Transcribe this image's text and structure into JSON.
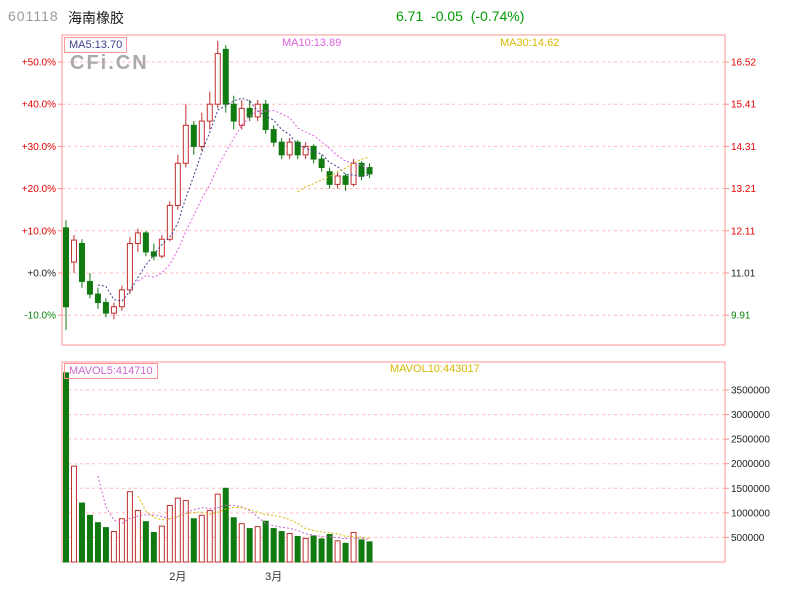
{
  "header": {
    "code": "601118",
    "name": "海南橡胶",
    "quote": "6.71  -0.05  (-0.74%)"
  },
  "watermark": "CFi.CN",
  "main_chart": {
    "ma_labels": [
      {
        "text": "MA5:13.70",
        "color": "#404090"
      },
      {
        "text": "MA10:13.89",
        "color": "#e060e0"
      },
      {
        "text": "MA30:14.62",
        "color": "#d8b800"
      }
    ]
  },
  "volume_chart": {
    "mavol_labels": [
      {
        "text": "MAVOL5:414710",
        "color": "#cc66cc"
      },
      {
        "text": "MAVOL10:443017",
        "color": "#d8b800"
      }
    ]
  },
  "chart_data": {
    "type": "candlestick",
    "title": "601118 海南橡胶",
    "subtitle": "Daily K-line (% change vs base) with volume pane",
    "base_price": 11.01,
    "pct_range": [
      -17.1,
      56.4
    ],
    "volume_range": [
      0,
      4070000
    ],
    "grid": "dashed-horizontal",
    "legend_position": "top-inside",
    "colors": {
      "up": "#c22f2f",
      "down": "#117a11",
      "grid": "#ffbcbc",
      "grid_strong": "#ff8c8c",
      "border": "#ff9494",
      "ma5": "#404090",
      "ma10": "#e060e0",
      "ma30": "#d8b800",
      "mavol5": "#cc66cc",
      "mavol10": "#d8b800",
      "month_label": "#333333"
    },
    "left_axis_ticks": [
      {
        "label": "+50.0%",
        "pct": 50,
        "color": "#e60000"
      },
      {
        "label": "+40.0%",
        "pct": 40,
        "color": "#e60000"
      },
      {
        "label": "+30.0%",
        "pct": 30,
        "color": "#e60000"
      },
      {
        "label": "+20.0%",
        "pct": 20,
        "color": "#e60000"
      },
      {
        "label": "+10.0%",
        "pct": 10,
        "color": "#e60000"
      },
      {
        "label": "+0.0%",
        "pct": 0,
        "color": "#222222"
      },
      {
        "label": "-10.0%",
        "pct": -10,
        "color": "#0a8a0a"
      }
    ],
    "right_axis_ticks": [
      {
        "label": "16.52",
        "pct": 50,
        "color": "#e60000"
      },
      {
        "label": "15.41",
        "pct": 40,
        "color": "#e60000"
      },
      {
        "label": "14.31",
        "pct": 30,
        "color": "#e60000"
      },
      {
        "label": "13.21",
        "pct": 20,
        "color": "#e60000"
      },
      {
        "label": "12.11",
        "pct": 10,
        "color": "#e60000"
      },
      {
        "label": "11.01",
        "pct": 0,
        "color": "#222222"
      },
      {
        "label": "9.91",
        "pct": -10,
        "color": "#0a8a0a"
      }
    ],
    "volume_axis_ticks": [
      {
        "label": "3500000",
        "value": 3500000,
        "color": "#222222"
      },
      {
        "label": "3000000",
        "value": 3000000,
        "color": "#222222"
      },
      {
        "label": "2500000",
        "value": 2500000,
        "color": "#222222"
      },
      {
        "label": "2000000",
        "value": 2000000,
        "color": "#222222"
      },
      {
        "label": "1500000",
        "value": 1500000,
        "color": "#222222"
      },
      {
        "label": "1000000",
        "value": 1000000,
        "color": "#222222"
      },
      {
        "label": "500000",
        "value": 500000,
        "color": "#222222"
      }
    ],
    "x_month_labels": [
      {
        "slot": 14,
        "label": "2月"
      },
      {
        "slot": 26,
        "label": "3月"
      }
    ],
    "total_slots": 83,
    "ma_periods": [
      5,
      10,
      30
    ],
    "mavol_periods": [
      5,
      10
    ],
    "columns": [
      "open_pct",
      "high_pct",
      "low_pct",
      "close_pct",
      "volume"
    ],
    "candles": [
      [
        10.7,
        12.5,
        -13.5,
        -8.0,
        3850000
      ],
      [
        2.6,
        9.0,
        0.0,
        7.8,
        1950000
      ],
      [
        7.0,
        8.0,
        -3.5,
        -2.0,
        1200000
      ],
      [
        -2.0,
        0.0,
        -6.0,
        -5.0,
        950000
      ],
      [
        -5.0,
        -3.5,
        -8.5,
        -7.0,
        800000
      ],
      [
        -7.0,
        -6.0,
        -10.5,
        -9.5,
        700000
      ],
      [
        -9.5,
        -7.0,
        -11.0,
        -8.0,
        620000
      ],
      [
        -8.0,
        -3.0,
        -9.0,
        -4.0,
        880000
      ],
      [
        -4.0,
        8.5,
        -5.0,
        7.0,
        1430000
      ],
      [
        7.0,
        10.5,
        5.0,
        9.5,
        1050000
      ],
      [
        9.5,
        10.0,
        4.0,
        5.0,
        820000
      ],
      [
        5.0,
        7.0,
        3.0,
        4.0,
        600000
      ],
      [
        4.0,
        9.0,
        3.5,
        8.0,
        730000
      ],
      [
        8.0,
        17.0,
        7.5,
        16.0,
        1150000
      ],
      [
        16.0,
        28.0,
        15.0,
        26.0,
        1300000
      ],
      [
        26.0,
        40.0,
        25.0,
        35.0,
        1250000
      ],
      [
        35.0,
        36.0,
        28.0,
        30.0,
        880000
      ],
      [
        30.0,
        38.0,
        29.0,
        36.0,
        950000
      ],
      [
        36.0,
        43.0,
        34.0,
        40.0,
        1050000
      ],
      [
        40.0,
        55.0,
        39.0,
        52.0,
        1380000
      ],
      [
        53.0,
        54.0,
        38.0,
        40.0,
        1500000
      ],
      [
        40.0,
        42.0,
        34.0,
        36.0,
        900000
      ],
      [
        35.0,
        41.0,
        34.0,
        39.0,
        780000
      ],
      [
        39.0,
        41.0,
        36.0,
        37.0,
        680000
      ],
      [
        37.0,
        41.0,
        36.0,
        40.0,
        720000
      ],
      [
        40.0,
        41.0,
        33.0,
        34.0,
        830000
      ],
      [
        34.0,
        35.0,
        30.0,
        31.0,
        680000
      ],
      [
        31.0,
        32.0,
        27.0,
        28.0,
        620000
      ],
      [
        28.0,
        32.0,
        27.0,
        31.0,
        580000
      ],
      [
        31.0,
        31.5,
        27.0,
        28.0,
        520000
      ],
      [
        28.0,
        31.0,
        27.0,
        30.0,
        480000
      ],
      [
        30.0,
        30.5,
        26.0,
        27.0,
        530000
      ],
      [
        27.0,
        28.0,
        24.0,
        25.0,
        470000
      ],
      [
        24.0,
        25.0,
        20.0,
        21.0,
        560000
      ],
      [
        21.0,
        24.0,
        20.0,
        23.0,
        430000
      ],
      [
        23.0,
        23.5,
        19.5,
        21.0,
        380000
      ],
      [
        21.0,
        27.0,
        20.5,
        26.0,
        600000
      ],
      [
        26.0,
        26.5,
        22.0,
        23.0,
        450000
      ],
      [
        25.0,
        26.0,
        22.5,
        23.5,
        410000
      ]
    ]
  }
}
